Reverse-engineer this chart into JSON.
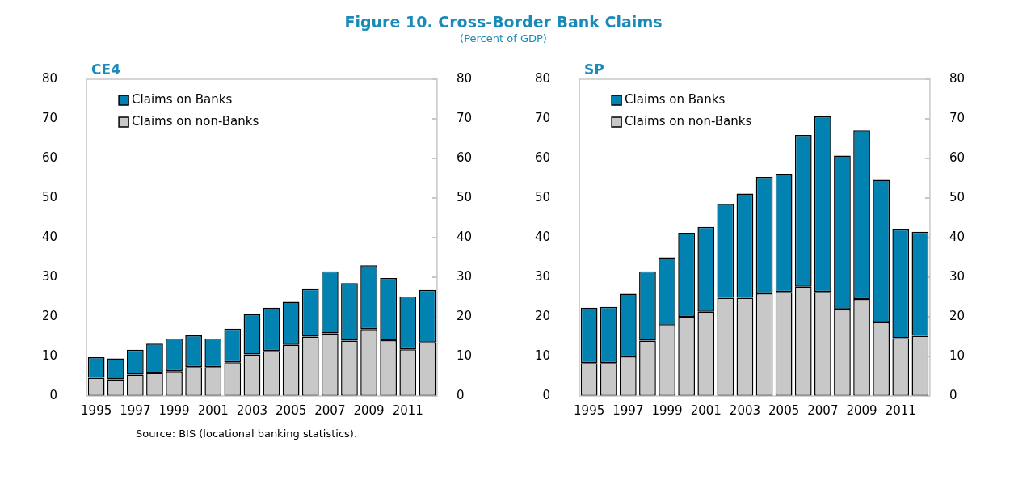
{
  "chart_data": [
    {
      "type": "other",
      "title": "Figure 10. Cross-Border Bank Claims",
      "subtitle": "(Percent of GDP)",
      "annotations": [
        "Source: BIS (locational banking statistics)."
      ]
    },
    {
      "type": "bar",
      "title": "CE4",
      "stacked": true,
      "legend": "top left",
      "grid": false,
      "categories": [
        "1995",
        null,
        "1997",
        null,
        "1999",
        null,
        "2001",
        null,
        "2003",
        null,
        "2005",
        null,
        "2007",
        null,
        "2009",
        null,
        "2011",
        null
      ],
      "ylim": [
        0,
        80
      ],
      "yticks": [
        0,
        10,
        20,
        30,
        40,
        50,
        60,
        70,
        80
      ],
      "y2lim": [
        0,
        80
      ],
      "y2ticks": [
        0,
        10,
        20,
        30,
        40,
        50,
        60,
        70,
        80
      ],
      "series": [
        {
          "name": "Claims on non-Banks",
          "color": "#c8c8c8",
          "values": [
            4.6,
            4.2,
            5.4,
            5.8,
            6.3,
            7.3,
            7.3,
            8.5,
            10.5,
            11.4,
            12.9,
            15,
            15.8,
            14,
            16.9,
            14.1,
            11.8,
            13.5
          ]
        },
        {
          "name": "Claims on Banks",
          "color": "#0282b0",
          "values": [
            5.2,
            5.3,
            6.3,
            7.4,
            8.2,
            8.0,
            7.2,
            8.5,
            10.1,
            10.9,
            10.9,
            12.0,
            15.7,
            14.5,
            16.1,
            15.7,
            13.3,
            13.3
          ]
        }
      ]
    },
    {
      "type": "bar",
      "title": "SP",
      "stacked": true,
      "legend": "top left",
      "grid": false,
      "categories": [
        "1995",
        null,
        "1997",
        null,
        "1999",
        null,
        "2001",
        null,
        "2003",
        null,
        "2005",
        null,
        "2007",
        null,
        "2009",
        null,
        "2011",
        null
      ],
      "ylim": [
        0,
        80
      ],
      "yticks": [
        0,
        10,
        20,
        30,
        40,
        50,
        60,
        70,
        80
      ],
      "y2lim": [
        0,
        80
      ],
      "y2ticks": [
        0,
        10,
        20,
        30,
        40,
        50,
        60,
        70,
        80
      ],
      "series": [
        {
          "name": "Claims on non-Banks",
          "color": "#c8c8c8",
          "values": [
            8.3,
            8.3,
            10,
            14,
            17.8,
            20,
            21.3,
            24.8,
            24.8,
            25.9,
            26.3,
            27.6,
            26.3,
            21.9,
            24.5,
            18.6,
            14.6,
            15.2
          ]
        },
        {
          "name": "Claims on Banks",
          "color": "#0282b0",
          "values": [
            14.0,
            14.2,
            15.8,
            17.5,
            17.2,
            21.2,
            21.4,
            23.7,
            26.3,
            29.4,
            29.8,
            38.3,
            44.3,
            38.8,
            42.6,
            36.0,
            27.5,
            26.3
          ]
        }
      ]
    }
  ]
}
